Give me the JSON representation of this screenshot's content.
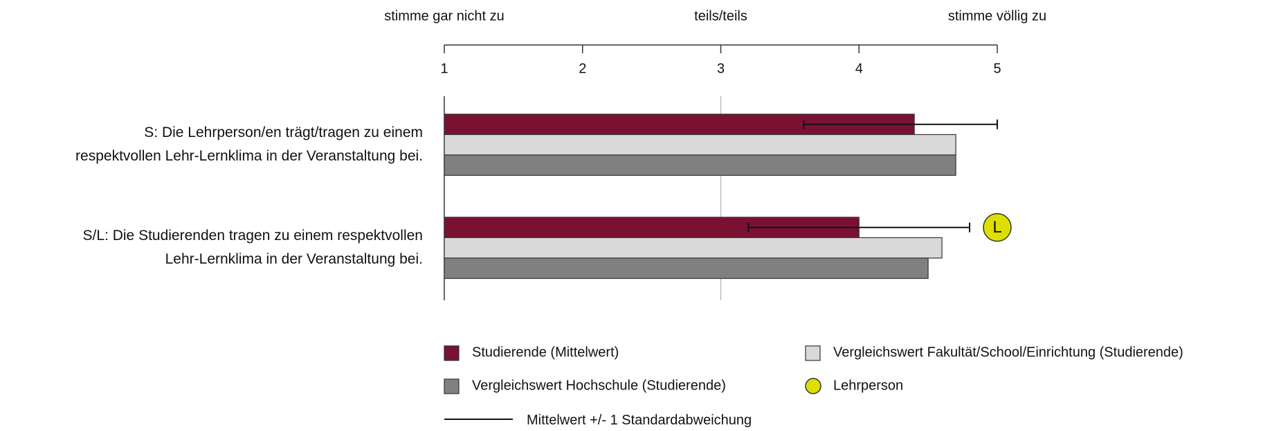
{
  "chart_data": {
    "type": "bar",
    "orientation": "horizontal",
    "categories": [
      [
        "S: Die Lehrperson/en trägt/tragen zu einem",
        "respektvollen Lehr-Lernklima in der Veranstaltung bei."
      ],
      [
        "S/L: Die Studierenden tragen zu einem respektvollen",
        "Lehr-Lernklima in der Veranstaltung bei."
      ]
    ],
    "xlim": [
      1,
      5
    ],
    "xticks": [
      1,
      2,
      3,
      4,
      5
    ],
    "gridlines": [
      3
    ],
    "anchor_labels": [
      {
        "value": 1,
        "label": "stimme gar nicht zu"
      },
      {
        "value": 3,
        "label": "teils/teils"
      },
      {
        "value": 5,
        "label": "stimme völlig zu"
      }
    ],
    "series": [
      {
        "name": "Studierende (Mittelwert)",
        "color": "#7b1132",
        "values": [
          4.4,
          4.0
        ],
        "errors": [
          0.8,
          0.8
        ]
      },
      {
        "name": "Vergleichswert Fakultät/School/Einrichtung (Studierende)",
        "color": "#d9d9d9",
        "values": [
          4.7,
          4.6
        ]
      },
      {
        "name": "Vergleichswert Hochschule (Studierende)",
        "color": "#808080",
        "values": [
          4.7,
          4.5
        ]
      },
      {
        "name": "Lehrperson",
        "color": "#dede00",
        "values": [
          null,
          5
        ],
        "marker": "circle",
        "marker_label": "L"
      }
    ],
    "error_bar_label": "Mittelwert +/- 1 Standardabweichung"
  }
}
